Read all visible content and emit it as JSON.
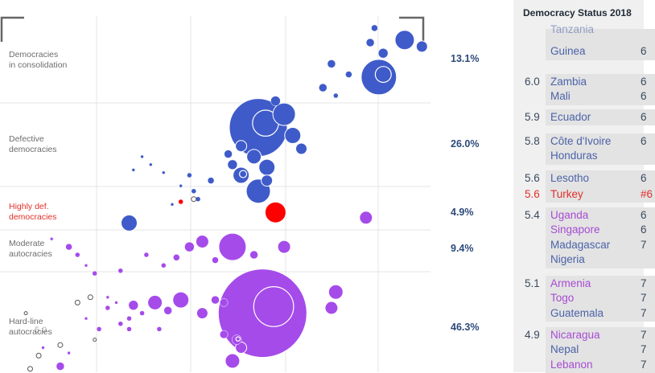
{
  "chart_data": {
    "type": "scatter",
    "title": "",
    "bands": [
      {
        "name": "Democracies\nin consolidation",
        "percent": "13.1%",
        "highlight": false
      },
      {
        "name": "Defective\ndemocracies",
        "percent": "26.0%",
        "highlight": false
      },
      {
        "name": "Highly def.\ndemocracies",
        "percent": "4.9%",
        "highlight": true
      },
      {
        "name": "Moderate\nautocracies",
        "percent": "9.4%",
        "highlight": false
      },
      {
        "name": "Hard-line\nautocracies",
        "percent": "46.3%",
        "highlight": false
      }
    ],
    "watermark_tick": "5.0",
    "colors": {
      "democracy": "#3f5bc9",
      "autocracy": "#a54bea",
      "highlight": "#ff0000",
      "grid": "#e4e4e4",
      "frame": "#666666"
    },
    "bubbles": [
      {
        "x": 0.87,
        "y": 0.955,
        "r": 4,
        "cat": "democracy"
      },
      {
        "x": 0.94,
        "y": 0.91,
        "r": 12,
        "cat": "democracy"
      },
      {
        "x": 0.98,
        "y": 0.885,
        "r": 7,
        "cat": "democracy"
      },
      {
        "x": 0.86,
        "y": 0.9,
        "r": 5,
        "cat": "democracy"
      },
      {
        "x": 0.89,
        "y": 0.86,
        "r": 6,
        "cat": "democracy"
      },
      {
        "x": 0.77,
        "y": 0.82,
        "r": 5,
        "cat": "democracy"
      },
      {
        "x": 0.81,
        "y": 0.78,
        "r": 4,
        "cat": "democracy"
      },
      {
        "x": 0.88,
        "y": 0.77,
        "r": 22,
        "cat": "democracy",
        "ring": true
      },
      {
        "x": 0.75,
        "y": 0.73,
        "r": 5,
        "cat": "democracy"
      },
      {
        "x": 0.78,
        "y": 0.7,
        "r": 3,
        "cat": "democracy"
      },
      {
        "x": 0.64,
        "y": 0.68,
        "r": 6,
        "cat": "democracy"
      },
      {
        "x": 0.66,
        "y": 0.63,
        "r": 14,
        "cat": "democracy"
      },
      {
        "x": 0.6,
        "y": 0.58,
        "r": 36,
        "cat": "democracy",
        "ring": true
      },
      {
        "x": 0.68,
        "y": 0.55,
        "r": 10,
        "cat": "democracy"
      },
      {
        "x": 0.7,
        "y": 0.5,
        "r": 7,
        "cat": "democracy"
      },
      {
        "x": 0.56,
        "y": 0.51,
        "r": 7,
        "cat": "democracy"
      },
      {
        "x": 0.53,
        "y": 0.48,
        "r": 5,
        "cat": "democracy"
      },
      {
        "x": 0.59,
        "y": 0.47,
        "r": 9,
        "cat": "democracy"
      },
      {
        "x": 0.62,
        "y": 0.43,
        "r": 10,
        "cat": "democracy"
      },
      {
        "x": 0.56,
        "y": 0.4,
        "r": 10,
        "cat": "democracy",
        "ring": true
      },
      {
        "x": 0.54,
        "y": 0.44,
        "r": 6,
        "cat": "democracy"
      },
      {
        "x": 0.62,
        "y": 0.38,
        "r": 7,
        "cat": "democracy"
      },
      {
        "x": 0.6,
        "y": 0.34,
        "r": 15,
        "cat": "democracy"
      },
      {
        "x": 0.49,
        "y": 0.38,
        "r": 4,
        "cat": "democracy"
      },
      {
        "x": 0.44,
        "y": 0.4,
        "r": 3,
        "cat": "democracy"
      },
      {
        "x": 0.45,
        "y": 0.34,
        "r": 3,
        "cat": "democracy"
      },
      {
        "x": 0.46,
        "y": 0.31,
        "r": 3,
        "cat": "democracy"
      },
      {
        "x": 0.3,
        "y": 0.22,
        "r": 10,
        "cat": "democracy"
      },
      {
        "x": 0.33,
        "y": 0.47,
        "r": 2,
        "cat": "democracy"
      },
      {
        "x": 0.35,
        "y": 0.44,
        "r": 2,
        "cat": "democracy"
      },
      {
        "x": 0.38,
        "y": 0.41,
        "r": 2,
        "cat": "democracy"
      },
      {
        "x": 0.31,
        "y": 0.42,
        "r": 2,
        "cat": "democracy"
      },
      {
        "x": 0.42,
        "y": 0.36,
        "r": 2,
        "cat": "democracy"
      },
      {
        "x": 0.4,
        "y": 0.29,
        "r": 2,
        "cat": "democracy"
      },
      {
        "x": 0.64,
        "y": 0.26,
        "r": 13,
        "cat": "highlight"
      },
      {
        "x": 0.42,
        "y": 0.3,
        "r": 3,
        "cat": "highlight"
      },
      {
        "x": 0.85,
        "y": 0.24,
        "r": 8,
        "cat": "autocracy"
      },
      {
        "x": 0.54,
        "y": 0.13,
        "r": 17,
        "cat": "autocracy"
      },
      {
        "x": 0.66,
        "y": 0.13,
        "r": 8,
        "cat": "autocracy"
      },
      {
        "x": 0.47,
        "y": 0.15,
        "r": 8,
        "cat": "autocracy"
      },
      {
        "x": 0.44,
        "y": 0.13,
        "r": 6,
        "cat": "autocracy"
      },
      {
        "x": 0.59,
        "y": 0.1,
        "r": 5,
        "cat": "autocracy"
      },
      {
        "x": 0.41,
        "y": 0.09,
        "r": 4,
        "cat": "autocracy"
      },
      {
        "x": 0.5,
        "y": 0.08,
        "r": 4,
        "cat": "autocracy"
      },
      {
        "x": 0.38,
        "y": 0.06,
        "r": 3,
        "cat": "autocracy"
      },
      {
        "x": 0.34,
        "y": 0.1,
        "r": 3,
        "cat": "autocracy"
      },
      {
        "x": 0.28,
        "y": 0.04,
        "r": 3,
        "cat": "autocracy"
      },
      {
        "x": 0.22,
        "y": 0.03,
        "r": 3,
        "cat": "autocracy"
      },
      {
        "x": 0.2,
        "y": 0.06,
        "r": 2,
        "cat": "autocracy"
      },
      {
        "x": 0.18,
        "y": 0.1,
        "r": 3,
        "cat": "autocracy"
      },
      {
        "x": 0.16,
        "y": 0.13,
        "r": 4,
        "cat": "autocracy"
      },
      {
        "x": 0.12,
        "y": 0.16,
        "r": 2,
        "cat": "autocracy"
      },
      {
        "x": 0.61,
        "y": -0.12,
        "r": 55,
        "cat": "autocracy",
        "ring": true
      },
      {
        "x": 0.78,
        "y": -0.04,
        "r": 9,
        "cat": "autocracy"
      },
      {
        "x": 0.77,
        "y": -0.1,
        "r": 8,
        "cat": "autocracy"
      },
      {
        "x": 0.42,
        "y": -0.07,
        "r": 10,
        "cat": "autocracy"
      },
      {
        "x": 0.36,
        "y": -0.08,
        "r": 9,
        "cat": "autocracy"
      },
      {
        "x": 0.5,
        "y": -0.07,
        "r": 5,
        "cat": "autocracy"
      },
      {
        "x": 0.52,
        "y": -0.08,
        "r": 5,
        "cat": "autocracy"
      },
      {
        "x": 0.47,
        "y": -0.12,
        "r": 7,
        "cat": "autocracy"
      },
      {
        "x": 0.39,
        "y": -0.11,
        "r": 5,
        "cat": "autocracy"
      },
      {
        "x": 0.31,
        "y": -0.09,
        "r": 6,
        "cat": "autocracy"
      },
      {
        "x": 0.33,
        "y": -0.12,
        "r": 3,
        "cat": "autocracy"
      },
      {
        "x": 0.25,
        "y": -0.1,
        "r": 3,
        "cat": "autocracy"
      },
      {
        "x": 0.27,
        "y": -0.08,
        "r": 2,
        "cat": "autocracy"
      },
      {
        "x": 0.25,
        "y": -0.06,
        "r": 2,
        "cat": "autocracy"
      },
      {
        "x": 0.3,
        "y": -0.14,
        "r": 3,
        "cat": "autocracy"
      },
      {
        "x": 0.28,
        "y": -0.16,
        "r": 3,
        "cat": "autocracy"
      },
      {
        "x": 0.37,
        "y": -0.18,
        "r": 3,
        "cat": "autocracy"
      },
      {
        "x": 0.3,
        "y": -0.18,
        "r": 3,
        "cat": "autocracy"
      },
      {
        "x": 0.2,
        "y": -0.14,
        "r": 2,
        "cat": "autocracy"
      },
      {
        "x": 0.52,
        "y": -0.2,
        "r": 5,
        "cat": "autocracy"
      },
      {
        "x": 0.56,
        "y": -0.25,
        "r": 7,
        "cat": "autocracy"
      },
      {
        "x": 0.54,
        "y": -0.3,
        "r": 9,
        "cat": "autocracy"
      },
      {
        "x": 0.55,
        "y": -0.22,
        "r": 6,
        "cat": "autocracy",
        "ring": true
      },
      {
        "x": 0.14,
        "y": -0.32,
        "r": 5,
        "cat": "autocracy"
      },
      {
        "x": 0.16,
        "y": -0.27,
        "r": 2,
        "cat": "autocracy"
      },
      {
        "x": 0.1,
        "y": -0.25,
        "r": 2,
        "cat": "autocracy"
      },
      {
        "x": 0.03,
        "y": -0.38,
        "r": 2,
        "cat": "autocracy"
      },
      {
        "x": 0.06,
        "y": -0.4,
        "r": 2,
        "cat": "autocracy"
      },
      {
        "x": 0.23,
        "y": -0.18,
        "r": 3,
        "cat": "autocracy"
      },
      {
        "x": 0.45,
        "y": 0.31,
        "r": 3,
        "cat": "hollow"
      },
      {
        "x": 0.18,
        "y": -0.08,
        "r": 3,
        "cat": "hollow"
      },
      {
        "x": 0.21,
        "y": -0.06,
        "r": 3,
        "cat": "hollow"
      },
      {
        "x": 0.14,
        "y": -0.24,
        "r": 3,
        "cat": "hollow"
      },
      {
        "x": 0.07,
        "y": -0.33,
        "r": 3,
        "cat": "hollow"
      },
      {
        "x": 0.09,
        "y": -0.28,
        "r": 3,
        "cat": "hollow"
      },
      {
        "x": 0.06,
        "y": -0.12,
        "r": 2,
        "cat": "hollow"
      },
      {
        "x": 0.22,
        "y": -0.22,
        "r": 2,
        "cat": "hollow"
      }
    ]
  },
  "panel": {
    "title": "Democracy Status 2018",
    "groups": [
      {
        "score": "",
        "score_color": "normal",
        "rows": [
          {
            "name": "Tanzania",
            "color": "blue",
            "end": "",
            "faded": true
          },
          {
            "name": "Guinea",
            "color": "blue",
            "end": "6"
          }
        ]
      },
      {
        "score": "6.0",
        "score_color": "normal",
        "rows": [
          {
            "name": "Zambia",
            "color": "blue",
            "end": "6"
          },
          {
            "name": "Mali",
            "color": "blue",
            "end": "6"
          }
        ]
      },
      {
        "score": "5.9",
        "score_color": "normal",
        "rows": [
          {
            "name": "Ecuador",
            "color": "blue",
            "end": "6"
          }
        ]
      },
      {
        "score": "5.8",
        "score_color": "normal",
        "rows": [
          {
            "name": "Côte d'Ivoire",
            "color": "blue",
            "end": "6"
          },
          {
            "name": "Honduras",
            "color": "blue",
            "end": ""
          }
        ]
      },
      {
        "score": "5.6",
        "score_color": "normal",
        "rows": [
          {
            "name": "Lesotho",
            "color": "blue",
            "end": "6"
          }
        ]
      },
      {
        "score": "5.6",
        "score_color": "red",
        "rows": [
          {
            "name": "Turkey",
            "color": "red",
            "end": "#6"
          }
        ]
      },
      {
        "score": "5.4",
        "score_color": "normal",
        "rows": [
          {
            "name": "Uganda",
            "color": "purple",
            "end": "6"
          },
          {
            "name": "Singapore",
            "color": "purple",
            "end": "6"
          },
          {
            "name": "Madagascar",
            "color": "blue",
            "end": "7"
          },
          {
            "name": "Nigeria",
            "color": "blue",
            "end": ""
          }
        ]
      },
      {
        "score": "5.1",
        "score_color": "normal",
        "rows": [
          {
            "name": "Armenia",
            "color": "purple",
            "end": "7"
          },
          {
            "name": "Togo",
            "color": "purple",
            "end": "7"
          },
          {
            "name": "Guatemala",
            "color": "blue",
            "end": "7"
          }
        ]
      },
      {
        "score": "4.9",
        "score_color": "normal",
        "rows": [
          {
            "name": "Nicaragua",
            "color": "purple",
            "end": "7"
          },
          {
            "name": "Nepal",
            "color": "blue",
            "end": "7"
          },
          {
            "name": "Lebanon",
            "color": "purple",
            "end": "7"
          }
        ]
      }
    ]
  }
}
